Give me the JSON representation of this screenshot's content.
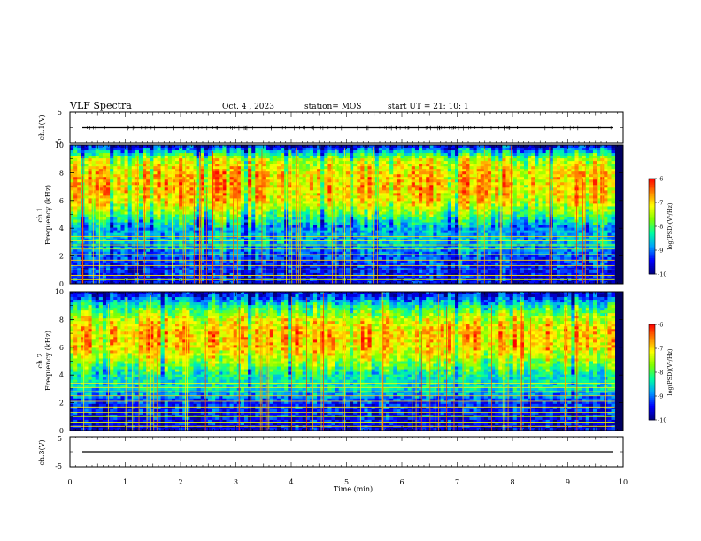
{
  "header": {
    "title": "VLF Spectra",
    "date": "Oct. 4 , 2023",
    "station": "station= MOS",
    "start": "start  UT =  21: 10: 1"
  },
  "chart_data": [
    {
      "type": "line",
      "panel": "ch1-waveform",
      "ylabel": "ch.1(V)",
      "ylim": [
        -5,
        5
      ],
      "yticks": [
        "5",
        "-5"
      ],
      "x": [
        0,
        10
      ],
      "values": [
        0,
        0
      ],
      "xlim": [
        0,
        10
      ]
    },
    {
      "type": "heatmap",
      "panel": "ch1-spectrogram",
      "ylabel": "ch.1\nFrequency (kHz)",
      "ylabel_line1": "ch.1",
      "ylabel_line2": "Frequency (kHz)",
      "ylim": [
        0,
        10
      ],
      "yticks": [
        "0",
        "2",
        "4",
        "6",
        "8",
        "10"
      ],
      "xlim": [
        0,
        9.85
      ],
      "colorbar": {
        "label": "log(PSD)(V²/Hz)",
        "range": [
          -10,
          -6
        ],
        "ticks": [
          "-6",
          "-7",
          "-8",
          "-9",
          "-10"
        ]
      },
      "profile_khz_to_level": [
        [
          0,
          -9.5
        ],
        [
          1,
          -9.3
        ],
        [
          2,
          -9.1
        ],
        [
          3,
          -8.6
        ],
        [
          4,
          -8.8
        ],
        [
          5,
          -7.8
        ],
        [
          6,
          -7.0
        ],
        [
          7,
          -6.8
        ],
        [
          8,
          -6.9
        ],
        [
          9,
          -7.4
        ],
        [
          10,
          -9.6
        ]
      ]
    },
    {
      "type": "heatmap",
      "panel": "ch2-spectrogram",
      "ylabel_line1": "ch.2",
      "ylabel_line2": "Frequency (kHz)",
      "ylim": [
        0,
        10
      ],
      "yticks": [
        "0",
        "2",
        "4",
        "6",
        "8",
        "10"
      ],
      "xlim": [
        0,
        9.85
      ],
      "colorbar": {
        "label": "log(PSD)(V²/Hz)",
        "range": [
          -10,
          -6
        ],
        "ticks": [
          "-6",
          "-7",
          "-8",
          "-9",
          "-10"
        ]
      },
      "profile_khz_to_level": [
        [
          0,
          -9.6
        ],
        [
          1,
          -9.4
        ],
        [
          2,
          -9.2
        ],
        [
          3,
          -8.5
        ],
        [
          4,
          -8.3
        ],
        [
          5,
          -7.5
        ],
        [
          6,
          -6.9
        ],
        [
          7,
          -6.8
        ],
        [
          8,
          -7.2
        ],
        [
          9,
          -8.2
        ],
        [
          10,
          -9.7
        ]
      ]
    },
    {
      "type": "line",
      "panel": "ch3-waveform",
      "ylabel": "ch.3(V)",
      "ylim": [
        -5,
        5
      ],
      "yticks": [
        "5",
        "-5"
      ],
      "x": [
        0,
        10
      ],
      "values": [
        0,
        0
      ],
      "xlim": [
        0,
        10
      ]
    }
  ],
  "xaxis": {
    "label": "Time  (min)",
    "ticks": [
      "0",
      "1",
      "2",
      "3",
      "4",
      "5",
      "6",
      "7",
      "8",
      "9",
      "10"
    ],
    "range": [
      0,
      10
    ]
  },
  "colors": {
    "scale": [
      "#000080",
      "#0000ff",
      "#00a0ff",
      "#00ffa0",
      "#7fff00",
      "#ffff00",
      "#ff8000",
      "#ff0000",
      "#ffffff"
    ],
    "axis": "#000000",
    "trace": "#000000"
  }
}
